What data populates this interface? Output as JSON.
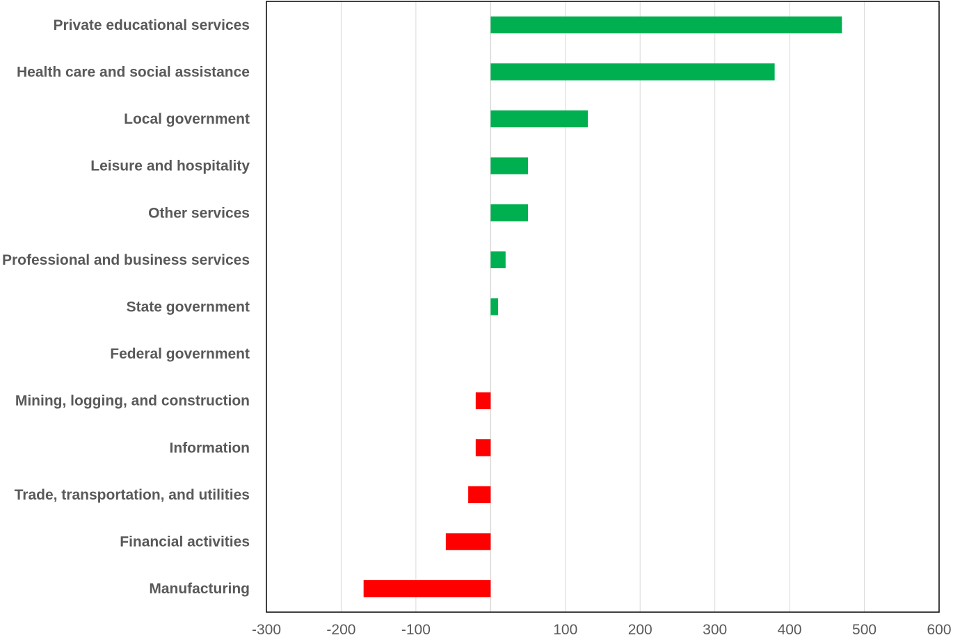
{
  "chart_data": {
    "type": "bar",
    "orientation": "horizontal",
    "title": "",
    "xlabel": "",
    "ylabel": "",
    "categories": [
      "Private educational services",
      "Health care and social assistance",
      "Local government",
      "Leisure and hospitality",
      "Other services",
      "Professional and business services",
      "State government",
      "Federal government",
      "Mining, logging, and construction",
      "Information",
      "Trade, transportation, and utilities",
      "Financial activities",
      "Manufacturing"
    ],
    "values": [
      470,
      380,
      130,
      50,
      50,
      20,
      10,
      0,
      -20,
      -20,
      -30,
      -60,
      -170
    ],
    "xlim": [
      -300,
      600
    ],
    "xticks": [
      -300,
      -200,
      -100,
      0,
      100,
      200,
      300,
      400,
      500,
      600
    ],
    "xtick_labels": [
      "-300",
      "-200",
      "-100",
      "",
      "100",
      "200",
      "300",
      "400",
      "500",
      "600"
    ],
    "grid": "vertical",
    "legend": "none",
    "colors": {
      "positive": "#00b050",
      "negative": "#ff0000"
    }
  }
}
